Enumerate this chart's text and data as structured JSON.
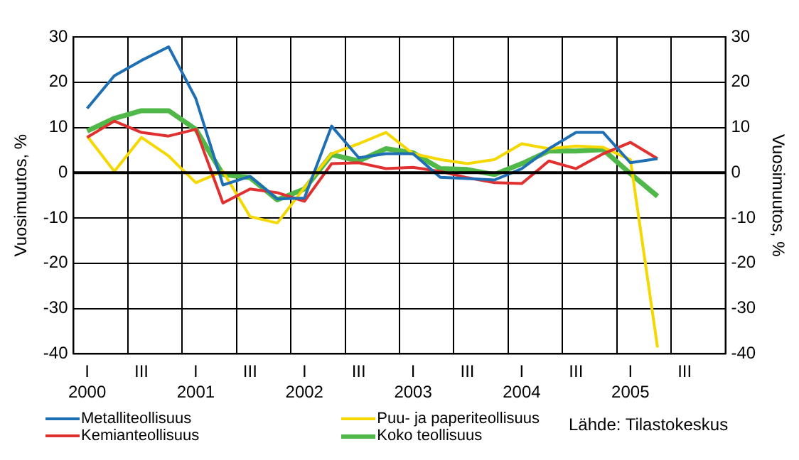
{
  "chart_data": {
    "type": "line",
    "ylabel": "Vuosimuutos, %",
    "y2label": "Vuosimuutos, %",
    "categories": [
      "I\n2000",
      null,
      "III",
      null,
      "I\n2001",
      null,
      "III",
      null,
      "I\n2002",
      null,
      "III",
      null,
      "I\n2003",
      null,
      "III",
      null,
      "I\n2004",
      null,
      "III",
      null,
      "I\n2005",
      null,
      "III",
      null
    ],
    "series": [
      {
        "name": "Metalliteollisuus",
        "color": "#1f6fb5",
        "values": [
          14.2,
          21.4,
          24.8,
          27.8,
          16.4,
          -2.7,
          -0.8,
          -5.8,
          -5.6,
          10.3,
          3.3,
          4.2,
          4.2,
          -1,
          -1.3,
          -1.6,
          0.9,
          5.3,
          8.9,
          8.9,
          2.2,
          3.1,
          null,
          null
        ]
      },
      {
        "name": "Kemianteollisuus",
        "color": "#e03030",
        "values": [
          7.8,
          11.4,
          8.9,
          8.1,
          9.6,
          -6.7,
          -3.6,
          -4.4,
          -6.3,
          2,
          2.2,
          0.9,
          1.2,
          0.3,
          -1.1,
          -2.2,
          -2.4,
          2.6,
          0.9,
          4.2,
          6.7,
          3.1,
          null,
          null
        ]
      },
      {
        "name": "Puu- ja paperiteollisuus",
        "color": "#f5d800",
        "values": [
          8.1,
          0.3,
          7.8,
          3.7,
          -2.2,
          0.3,
          -9.7,
          -11.1,
          -3.3,
          4.2,
          6.4,
          8.9,
          4.2,
          2.9,
          2,
          2.9,
          6.4,
          5.3,
          5.9,
          5.6,
          2.9,
          -38.6,
          null,
          null
        ]
      },
      {
        "name": "Koko teollisuus",
        "color": "#50b848",
        "values": [
          9.2,
          12,
          13.7,
          13.7,
          9.6,
          -0.4,
          -1.1,
          -6,
          -3.6,
          4,
          2.6,
          5.3,
          4.4,
          0.9,
          0.7,
          -0.4,
          2,
          4.8,
          4.8,
          5.1,
          -0.2,
          -5.2,
          null,
          null
        ]
      }
    ],
    "ylim": [
      -40,
      30
    ],
    "yticks": [
      -40,
      -30,
      -20,
      -10,
      0,
      10,
      20,
      30
    ],
    "y2lim": [
      -40,
      30
    ],
    "y2ticks": [
      -40,
      -30,
      -20,
      -10,
      0,
      10,
      20,
      30
    ],
    "ref_lines": [
      {
        "axis": "y",
        "value": 0,
        "color": "#000000"
      }
    ],
    "grid": true,
    "legend": "bottom",
    "marker": "none",
    "line_style": "solid",
    "annotations": [
      "Lähde: Tilastokeskus"
    ]
  }
}
